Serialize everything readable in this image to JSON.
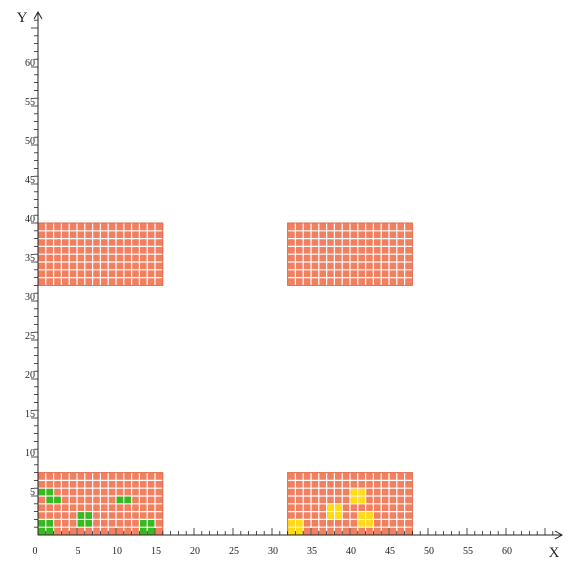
{
  "chart_data": {
    "type": "grid-layout",
    "x_axis": {
      "label": "X",
      "min": 0,
      "max": 66,
      "tick_labels": [
        "0",
        "5",
        "10",
        "15",
        "20",
        "25",
        "30",
        "35",
        "40",
        "45",
        "50",
        "55",
        "60"
      ]
    },
    "y_axis": {
      "label": "Y",
      "min": 0,
      "max": 66,
      "tick_labels": [
        "5",
        "10",
        "15",
        "20",
        "25",
        "30",
        "35",
        "40",
        "45",
        "50",
        "55",
        "60"
      ]
    },
    "colors": {
      "block_fill": "#f08060",
      "block_line": "#ffffff",
      "block_border": "#e06a4c",
      "green_cell": "#33bb22",
      "yellow_cell": "#ffdd11",
      "axis": "#222222"
    },
    "blocks": [
      {
        "x0": 0,
        "x1": 16,
        "y0": 0,
        "y1": 8
      },
      {
        "x0": 32,
        "x1": 48,
        "y0": 0,
        "y1": 8
      },
      {
        "x0": 0,
        "x1": 16,
        "y0": 32,
        "y1": 40
      },
      {
        "x0": 32,
        "x1": 48,
        "y0": 32,
        "y1": 40
      }
    ],
    "green_cells": [
      [
        0,
        5
      ],
      [
        1,
        5
      ],
      [
        1,
        4
      ],
      [
        2,
        4
      ],
      [
        0,
        1
      ],
      [
        1,
        1
      ],
      [
        0,
        0
      ],
      [
        1,
        0
      ],
      [
        5,
        2
      ],
      [
        6,
        2
      ],
      [
        5,
        1
      ],
      [
        6,
        1
      ],
      [
        10,
        4
      ],
      [
        11,
        4
      ],
      [
        13,
        1
      ],
      [
        14,
        1
      ],
      [
        13,
        0
      ],
      [
        14,
        0
      ]
    ],
    "yellow_cells": [
      [
        32,
        1
      ],
      [
        33,
        1
      ],
      [
        32,
        0
      ],
      [
        33,
        0
      ],
      [
        37,
        3
      ],
      [
        38,
        3
      ],
      [
        37,
        2
      ],
      [
        38,
        2
      ],
      [
        40,
        5
      ],
      [
        41,
        5
      ],
      [
        40,
        4
      ],
      [
        41,
        4
      ],
      [
        41,
        2
      ],
      [
        42,
        2
      ],
      [
        41,
        1
      ],
      [
        42,
        1
      ]
    ]
  }
}
